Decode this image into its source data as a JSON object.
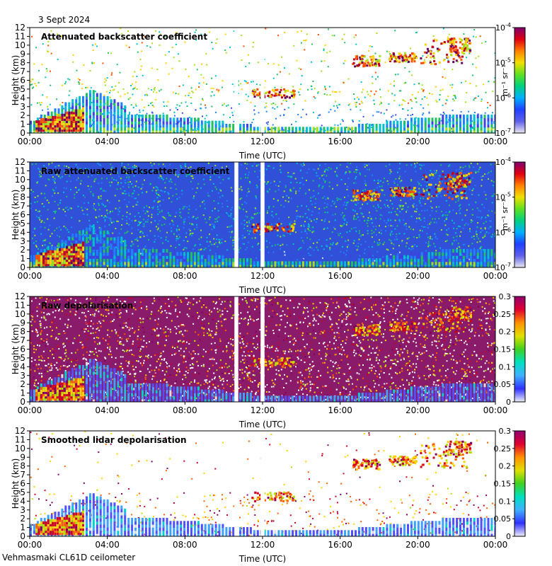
{
  "header": {
    "date": "3 Sept 2024"
  },
  "footer": {
    "instrument": "Vehmasmaki CL61D ceilometer"
  },
  "colors": {
    "background": "#ffffff",
    "plot_frame": "#000000",
    "data_gap": "#ffffff"
  },
  "shared_axes": {
    "xlabel": "Time (UTC)",
    "ylabel": "Height (km)",
    "x_ticks": [
      "00:00",
      "04:00",
      "08:00",
      "12:00",
      "16:00",
      "20:00",
      "00:00"
    ],
    "x_range_hours": [
      0,
      24
    ],
    "y_ticks": [
      "0",
      "1",
      "2",
      "3",
      "4",
      "5",
      "6",
      "7",
      "8",
      "9",
      "10",
      "11",
      "12"
    ],
    "y_range_km": [
      0,
      12
    ]
  },
  "chart_data": [
    {
      "type": "heatmap",
      "title": "Attenuated backscatter coefficient",
      "xlabel": "Time (UTC)",
      "ylabel": "Height (km)",
      "xlim_hours": [
        0,
        24
      ],
      "ylim_km": [
        0,
        12
      ],
      "colorbar": {
        "scale": "log",
        "range": [
          1e-07,
          0.0001
        ],
        "unit_text": "m⁻¹ sr⁻¹",
        "ticks": [
          {
            "value": 0.0001,
            "base": "10",
            "exp": "-4"
          },
          {
            "value": 1e-05,
            "base": "10",
            "exp": "-5"
          },
          {
            "value": 1e-06,
            "base": "10",
            "exp": "-6"
          },
          {
            "value": 1e-07,
            "base": "10",
            "exp": "-7"
          }
        ]
      },
      "gaps_hours": [
        [
          10.55,
          10.75
        ],
        [
          11.9,
          12.1
        ]
      ],
      "noise_level": "moderate"
    },
    {
      "type": "heatmap",
      "title": "Raw attenuated backscatter coefficient",
      "xlabel": "Time (UTC)",
      "ylabel": "Height (km)",
      "xlim_hours": [
        0,
        24
      ],
      "ylim_km": [
        0,
        12
      ],
      "colorbar": {
        "scale": "log",
        "range": [
          1e-07,
          0.0001
        ],
        "unit_text": "m⁻¹ sr⁻¹",
        "ticks": [
          {
            "value": 0.0001,
            "base": "10",
            "exp": "-4"
          },
          {
            "value": 1e-05,
            "base": "10",
            "exp": "-5"
          },
          {
            "value": 1e-06,
            "base": "10",
            "exp": "-6"
          },
          {
            "value": 1e-07,
            "base": "10",
            "exp": "-7"
          }
        ]
      },
      "gaps_hours": [
        [
          10.55,
          10.75
        ],
        [
          11.9,
          12.1
        ]
      ],
      "noise_level": "high"
    },
    {
      "type": "heatmap",
      "title": "Raw depolarisation",
      "xlabel": "Time (UTC)",
      "ylabel": "Height (km)",
      "xlim_hours": [
        0,
        24
      ],
      "ylim_km": [
        0,
        12
      ],
      "colorbar": {
        "scale": "linear",
        "range": [
          0,
          0.3
        ],
        "unit_text": "",
        "ticks": [
          {
            "value": 0.3,
            "label": "0.3"
          },
          {
            "value": 0.25,
            "label": "0.25"
          },
          {
            "value": 0.2,
            "label": "0.2"
          },
          {
            "value": 0.15,
            "label": "0.15"
          },
          {
            "value": 0.1,
            "label": "0.1"
          },
          {
            "value": 0.05,
            "label": "0.05"
          },
          {
            "value": 0,
            "label": "0"
          }
        ]
      },
      "gaps_hours": [
        [
          10.55,
          10.75
        ],
        [
          11.9,
          12.1
        ]
      ],
      "noise_level": "very high"
    },
    {
      "type": "heatmap",
      "title": "Smoothed lidar depolarisation",
      "xlabel": "Time (UTC)",
      "ylabel": "Height (km)",
      "xlim_hours": [
        0,
        24
      ],
      "ylim_km": [
        0,
        12
      ],
      "colorbar": {
        "scale": "linear",
        "range": [
          0,
          0.3
        ],
        "unit_text": "",
        "ticks": [
          {
            "value": 0.3,
            "label": "0.3"
          },
          {
            "value": 0.25,
            "label": "0.25"
          },
          {
            "value": 0.2,
            "label": "0.2"
          },
          {
            "value": 0.15,
            "label": "0.15"
          },
          {
            "value": 0.1,
            "label": "0.1"
          },
          {
            "value": 0.05,
            "label": "0.05"
          },
          {
            "value": 0,
            "label": "0"
          }
        ]
      },
      "gaps_hours": [
        [
          10.55,
          10.75
        ],
        [
          11.9,
          12.1
        ]
      ],
      "noise_level": "low"
    }
  ]
}
